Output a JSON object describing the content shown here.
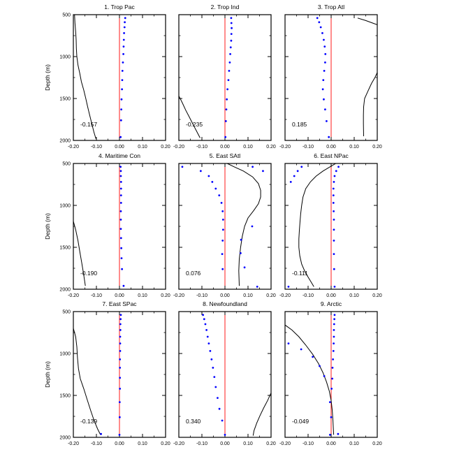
{
  "chart_data": {
    "type": "line",
    "layout": "3x3 panel grid",
    "ylabel": "Depth (m)",
    "xlim": [
      -0.2,
      0.2
    ],
    "ylim": [
      500,
      2000
    ],
    "y_inverted": true,
    "xticks": [
      "-0.20",
      "-0.10",
      "0.00",
      "0.10",
      "0.20"
    ],
    "yticks": [
      "500",
      "1000",
      "1500",
      "2000"
    ],
    "zero_line_color": "#ff0000",
    "line_color": "#000000",
    "dot_color": "#0000ff",
    "panels": [
      {
        "title": "1. Trop Pac",
        "correlation": "-0.157",
        "line": [
          [
            -0.195,
            500
          ],
          [
            -0.193,
            600
          ],
          [
            -0.19,
            700
          ],
          [
            -0.188,
            800
          ],
          [
            -0.187,
            900
          ],
          [
            -0.185,
            1000
          ],
          [
            -0.18,
            1100
          ],
          [
            -0.172,
            1200
          ],
          [
            -0.165,
            1300
          ],
          [
            -0.155,
            1400
          ],
          [
            -0.146,
            1500
          ],
          [
            -0.138,
            1600
          ],
          [
            -0.129,
            1700
          ],
          [
            -0.12,
            1800
          ],
          [
            -0.111,
            1900
          ],
          [
            -0.102,
            1980
          ]
        ],
        "dots": [
          [
            0.025,
            540
          ],
          [
            0.023,
            590
          ],
          [
            0.022,
            650
          ],
          [
            0.02,
            720
          ],
          [
            0.019,
            800
          ],
          [
            0.018,
            880
          ],
          [
            0.017,
            970
          ],
          [
            0.015,
            1070
          ],
          [
            0.013,
            1170
          ],
          [
            0.012,
            1280
          ],
          [
            0.011,
            1390
          ],
          [
            0.009,
            1510
          ],
          [
            0.008,
            1630
          ],
          [
            0.007,
            1760
          ],
          [
            0.005,
            1960
          ]
        ]
      },
      {
        "title": "2. Trop Ind",
        "correlation": "-0.235",
        "line": [
          [
            -0.2,
            1470
          ],
          [
            -0.185,
            1550
          ],
          [
            -0.17,
            1640
          ],
          [
            -0.155,
            1720
          ],
          [
            -0.14,
            1800
          ],
          [
            -0.125,
            1880
          ],
          [
            -0.108,
            1970
          ]
        ],
        "dots": [
          [
            0.027,
            540
          ],
          [
            0.028,
            600
          ],
          [
            0.029,
            660
          ],
          [
            0.028,
            730
          ],
          [
            0.027,
            810
          ],
          [
            0.025,
            890
          ],
          [
            0.023,
            970
          ],
          [
            0.021,
            1070
          ],
          [
            0.018,
            1170
          ],
          [
            0.015,
            1280
          ],
          [
            0.011,
            1390
          ],
          [
            0.008,
            1510
          ],
          [
            0.006,
            1630
          ],
          [
            0.004,
            1770
          ],
          [
            0.002,
            1960
          ]
        ]
      },
      {
        "title": "3. Trop Atl",
        "correlation": "0.185",
        "line": [
          [
            0.115,
            540
          ],
          [
            0.15,
            570
          ],
          [
            0.18,
            600
          ],
          [
            0.2,
            620
          ],
          [
            null,
            null
          ],
          [
            0.2,
            1190
          ],
          [
            0.19,
            1250
          ],
          [
            0.175,
            1320
          ],
          [
            0.16,
            1410
          ],
          [
            0.145,
            1500
          ],
          [
            0.141,
            1600
          ],
          [
            0.14,
            1700
          ],
          [
            0.14,
            1800
          ],
          [
            0.141,
            1950
          ]
        ],
        "dots": [
          [
            -0.06,
            540
          ],
          [
            -0.052,
            590
          ],
          [
            -0.045,
            650
          ],
          [
            -0.038,
            720
          ],
          [
            -0.032,
            800
          ],
          [
            -0.028,
            880
          ],
          [
            -0.025,
            970
          ],
          [
            -0.026,
            1070
          ],
          [
            -0.03,
            1170
          ],
          [
            -0.034,
            1280
          ],
          [
            -0.036,
            1390
          ],
          [
            -0.032,
            1510
          ],
          [
            -0.026,
            1630
          ],
          [
            -0.02,
            1770
          ],
          [
            -0.01,
            1960
          ]
        ]
      },
      {
        "title": "4. Maritime Con",
        "correlation": "-0.190",
        "line": [
          [
            -0.2,
            1190
          ],
          [
            -0.19,
            1290
          ],
          [
            -0.18,
            1420
          ],
          [
            -0.172,
            1550
          ],
          [
            -0.164,
            1680
          ],
          [
            -0.156,
            1810
          ],
          [
            -0.148,
            1960
          ]
        ],
        "dots": [
          [
            0.005,
            540
          ],
          [
            0.006,
            590
          ],
          [
            0.006,
            650
          ],
          [
            0.007,
            720
          ],
          [
            0.007,
            800
          ],
          [
            0.007,
            880
          ],
          [
            0.007,
            970
          ],
          [
            0.006,
            1070
          ],
          [
            0.006,
            1170
          ],
          [
            0.006,
            1280
          ],
          [
            0.007,
            1390
          ],
          [
            0.008,
            1510
          ],
          [
            0.009,
            1630
          ],
          [
            0.011,
            1760
          ],
          [
            0.018,
            1960
          ]
        ]
      },
      {
        "title": "5. East SAtl",
        "correlation": "0.076",
        "line": [
          [
            0.01,
            500
          ],
          [
            0.04,
            540
          ],
          [
            0.08,
            590
          ],
          [
            0.12,
            660
          ],
          [
            0.145,
            740
          ],
          [
            0.155,
            820
          ],
          [
            0.155,
            900
          ],
          [
            0.145,
            980
          ],
          [
            0.125,
            1060
          ],
          [
            0.1,
            1150
          ],
          [
            0.085,
            1250
          ],
          [
            0.075,
            1370
          ],
          [
            0.068,
            1500
          ],
          [
            0.062,
            1640
          ],
          [
            0.06,
            1780
          ],
          [
            0.062,
            1960
          ]
        ],
        "dots": [
          [
            -0.185,
            540
          ],
          [
            -0.105,
            590
          ],
          [
            0.12,
            540
          ],
          [
            0.165,
            590
          ],
          [
            -0.07,
            650
          ],
          [
            -0.055,
            720
          ],
          [
            -0.04,
            800
          ],
          [
            -0.025,
            880
          ],
          [
            -0.015,
            970
          ],
          [
            -0.01,
            1070
          ],
          [
            -0.008,
            1170
          ],
          [
            0.118,
            1250
          ],
          [
            -0.008,
            1290
          ],
          [
            0.07,
            1410
          ],
          [
            -0.01,
            1420
          ],
          [
            0.068,
            1570
          ],
          [
            -0.012,
            1580
          ],
          [
            0.085,
            1740
          ],
          [
            -0.01,
            1760
          ],
          [
            0.14,
            1970
          ]
        ]
      },
      {
        "title": "6. East NPac",
        "correlation": "-0.111",
        "line": [
          [
            0.02,
            500
          ],
          [
            -0.005,
            540
          ],
          [
            -0.035,
            590
          ],
          [
            -0.065,
            650
          ],
          [
            -0.09,
            720
          ],
          [
            -0.11,
            800
          ],
          [
            -0.122,
            900
          ],
          [
            -0.128,
            1000
          ],
          [
            -0.132,
            1100
          ],
          [
            -0.135,
            1200
          ],
          [
            -0.138,
            1300
          ],
          [
            -0.14,
            1400
          ],
          [
            -0.14,
            1500
          ],
          [
            -0.136,
            1600
          ],
          [
            -0.128,
            1700
          ],
          [
            -0.112,
            1800
          ],
          [
            -0.09,
            1900
          ],
          [
            -0.075,
            1970
          ]
        ],
        "dots": [
          [
            -0.128,
            540
          ],
          [
            0.032,
            540
          ],
          [
            -0.145,
            590
          ],
          [
            0.022,
            590
          ],
          [
            -0.16,
            650
          ],
          [
            0.015,
            650
          ],
          [
            -0.175,
            720
          ],
          [
            0.012,
            720
          ],
          [
            0.01,
            800
          ],
          [
            0.01,
            880
          ],
          [
            0.01,
            970
          ],
          [
            0.011,
            1070
          ],
          [
            0.012,
            1170
          ],
          [
            0.012,
            1290
          ],
          [
            0.012,
            1420
          ],
          [
            0.012,
            1580
          ],
          [
            0.013,
            1760
          ],
          [
            0.015,
            1970
          ],
          [
            -0.185,
            1970
          ]
        ]
      },
      {
        "title": "7. East SPac",
        "correlation": "-0.139",
        "line": [
          [
            -0.2,
            700
          ],
          [
            -0.19,
            800
          ],
          [
            -0.185,
            920
          ],
          [
            -0.182,
            1050
          ],
          [
            -0.178,
            1180
          ],
          [
            -0.17,
            1300
          ],
          [
            -0.155,
            1420
          ],
          [
            -0.14,
            1550
          ],
          [
            -0.125,
            1680
          ],
          [
            -0.11,
            1800
          ],
          [
            -0.095,
            1900
          ],
          [
            -0.082,
            1970
          ]
        ],
        "dots": [
          [
            0.006,
            540
          ],
          [
            0.005,
            590
          ],
          [
            0.004,
            650
          ],
          [
            0.004,
            720
          ],
          [
            0.003,
            800
          ],
          [
            0.003,
            880
          ],
          [
            0.003,
            970
          ],
          [
            0.002,
            1070
          ],
          [
            0.002,
            1170
          ],
          [
            0.002,
            1290
          ],
          [
            0.002,
            1420
          ],
          [
            0.001,
            1580
          ],
          [
            0.001,
            1760
          ],
          [
            -0.08,
            1960
          ],
          [
            0.0,
            1970
          ]
        ]
      },
      {
        "title": "8. Newfoundland",
        "correlation": "0.340",
        "line": [
          [
            0.2,
            1470
          ],
          [
            0.185,
            1560
          ],
          [
            0.168,
            1650
          ],
          [
            0.152,
            1740
          ],
          [
            0.138,
            1830
          ],
          [
            0.126,
            1920
          ],
          [
            0.122,
            1980
          ]
        ],
        "dots": [
          [
            -0.095,
            540
          ],
          [
            -0.09,
            590
          ],
          [
            -0.085,
            650
          ],
          [
            -0.08,
            720
          ],
          [
            -0.075,
            800
          ],
          [
            -0.07,
            880
          ],
          [
            -0.064,
            970
          ],
          [
            -0.058,
            1070
          ],
          [
            -0.052,
            1170
          ],
          [
            -0.046,
            1280
          ],
          [
            -0.04,
            1400
          ],
          [
            -0.032,
            1530
          ],
          [
            -0.024,
            1660
          ],
          [
            -0.012,
            1800
          ],
          [
            0.0,
            1970
          ]
        ]
      },
      {
        "title": "9. Arctic",
        "correlation": "-0.049",
        "line": [
          [
            -0.2,
            660
          ],
          [
            -0.17,
            720
          ],
          [
            -0.14,
            800
          ],
          [
            -0.11,
            900
          ],
          [
            -0.08,
            1010
          ],
          [
            -0.055,
            1120
          ],
          [
            -0.035,
            1230
          ],
          [
            -0.02,
            1340
          ],
          [
            -0.008,
            1450
          ],
          [
            0.0,
            1560
          ],
          [
            0.005,
            1680
          ],
          [
            0.008,
            1800
          ],
          [
            0.01,
            1920
          ],
          [
            0.011,
            1970
          ]
        ],
        "dots": [
          [
            0.015,
            540
          ],
          [
            0.014,
            590
          ],
          [
            0.013,
            650
          ],
          [
            0.012,
            720
          ],
          [
            0.012,
            800
          ],
          [
            -0.185,
            880
          ],
          [
            0.011,
            880
          ],
          [
            -0.13,
            950
          ],
          [
            0.01,
            970
          ],
          [
            -0.08,
            1040
          ],
          [
            0.008,
            1070
          ],
          [
            -0.05,
            1150
          ],
          [
            0.006,
            1170
          ],
          [
            -0.03,
            1270
          ],
          [
            0.005,
            1300
          ],
          [
            0.002,
            1420
          ],
          [
            -0.005,
            1580
          ],
          [
            0.0,
            1760
          ],
          [
            0.03,
            1960
          ],
          [
            -0.005,
            1970
          ]
        ]
      }
    ]
  }
}
